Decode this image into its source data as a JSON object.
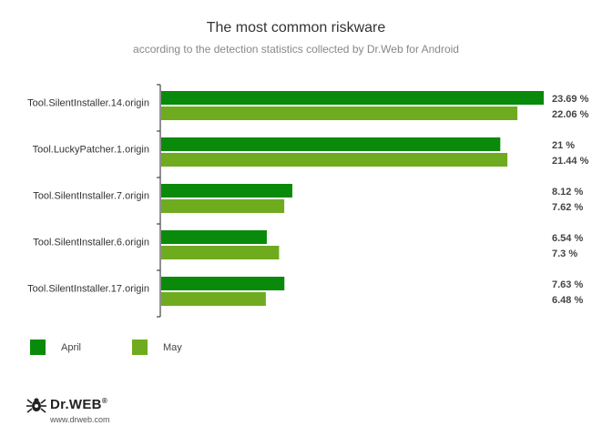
{
  "chart_data": {
    "type": "bar",
    "orientation": "horizontal",
    "title": "The most common riskware",
    "subtitle": "according to the detection statistics collected by Dr.Web for Android",
    "categories": [
      "Tool.SilentInstaller.14.origin",
      "Tool.LuckyPatcher.1.origin",
      "Tool.SilentInstaller.7.origin",
      "Tool.SilentInstaller.6.origin",
      "Tool.SilentInstaller.17.origin"
    ],
    "series": [
      {
        "name": "April",
        "color": "#0a8a0a",
        "values": [
          23.69,
          21,
          8.12,
          6.54,
          7.63
        ],
        "labels": [
          "23.69 %",
          "21 %",
          "8.12 %",
          "6.54 %",
          "7.63 %"
        ]
      },
      {
        "name": "May",
        "color": "#6fab1f",
        "values": [
          22.06,
          21.44,
          7.62,
          7.3,
          6.48
        ],
        "labels": [
          "22.06 %",
          "21.44 %",
          "7.62 %",
          "7.3 %",
          "6.48 %"
        ]
      }
    ],
    "xlim": [
      0,
      23.69
    ],
    "grid": false,
    "legend": "bottom-left"
  },
  "footer": {
    "logo_text": "Dr.WEB",
    "logo_mark_symbol": "®",
    "logo_icon": "spider-icon",
    "url": "www.drweb.com"
  }
}
